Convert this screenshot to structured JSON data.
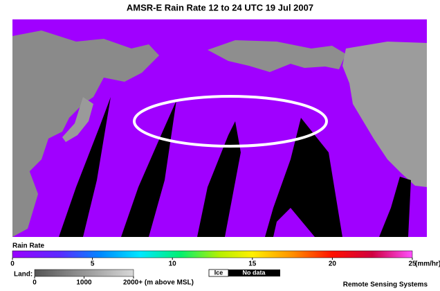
{
  "title": "AMSR-E Rain Rate  12 to 24 UTC  19 Jul 2007",
  "rain_scale": {
    "label": "Rain Rate",
    "lim": [
      0,
      25
    ],
    "ticks": [
      0,
      5,
      10,
      15,
      20,
      25
    ],
    "unit": "(mm/hr)"
  },
  "land_scale": {
    "label": "Land:",
    "lim": [
      0,
      2000
    ],
    "ticks": [
      0,
      1000,
      {
        "value": 2000,
        "label": "2000+ (m above MSL)"
      }
    ]
  },
  "legend": {
    "ice": "Ice",
    "no_data": "No data"
  },
  "credit": "Remote Sensing Systems"
}
